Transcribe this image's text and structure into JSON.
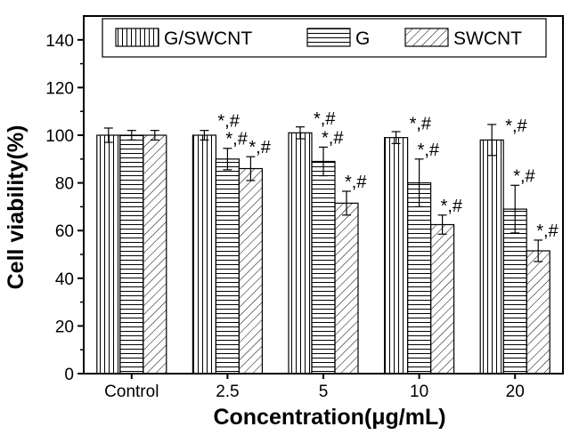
{
  "chart_data": {
    "type": "bar",
    "xlabel": "Concentration(μg/mL)",
    "ylabel": "Cell viability(%)",
    "ylim": [
      0,
      150
    ],
    "yticks": [
      0,
      20,
      40,
      60,
      80,
      100,
      120,
      140
    ],
    "categories": [
      "Control",
      "2.5",
      "5",
      "10",
      "20"
    ],
    "legend_position": "top",
    "series": [
      {
        "name": "G/SWCNT",
        "pattern": "vertical-lines",
        "values": [
          100,
          100,
          101,
          99,
          98
        ],
        "errors": [
          3,
          2,
          2.5,
          2.5,
          6.5
        ],
        "significance": [
          "",
          "*,#",
          "*,#",
          "*,#",
          "*,#"
        ]
      },
      {
        "name": "G",
        "pattern": "horizontal-lines",
        "values": [
          100,
          90,
          89,
          80,
          69
        ],
        "errors": [
          2,
          4.5,
          6,
          10,
          10
        ],
        "significance": [
          "",
          "*,#",
          "*,#",
          "*,#",
          "*,#"
        ]
      },
      {
        "name": "SWCNT",
        "pattern": "diagonal-lines",
        "values": [
          100,
          86,
          71.5,
          62.5,
          51.5
        ],
        "errors": [
          2,
          5,
          5,
          4,
          4.5
        ],
        "significance": [
          "",
          "*,#",
          "*,#",
          "*,#",
          "*,#"
        ]
      }
    ]
  }
}
